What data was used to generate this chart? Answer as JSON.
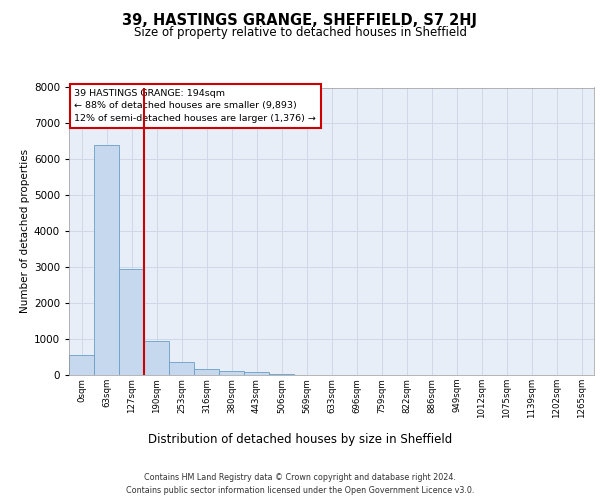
{
  "title": "39, HASTINGS GRANGE, SHEFFIELD, S7 2HJ",
  "subtitle": "Size of property relative to detached houses in Sheffield",
  "xlabel": "Distribution of detached houses by size in Sheffield",
  "ylabel": "Number of detached properties",
  "bar_labels": [
    "0sqm",
    "63sqm",
    "127sqm",
    "190sqm",
    "253sqm",
    "316sqm",
    "380sqm",
    "443sqm",
    "506sqm",
    "569sqm",
    "633sqm",
    "696sqm",
    "759sqm",
    "822sqm",
    "886sqm",
    "949sqm",
    "1012sqm",
    "1075sqm",
    "1139sqm",
    "1202sqm",
    "1265sqm"
  ],
  "bar_values": [
    550,
    6400,
    2950,
    950,
    370,
    170,
    100,
    80,
    30,
    10,
    5,
    3,
    2,
    1,
    1,
    0,
    0,
    0,
    0,
    0,
    0
  ],
  "bar_color": "#c5d8ed",
  "bar_edge_color": "#6a9fc8",
  "annotation_text_line1": "39 HASTINGS GRANGE: 194sqm",
  "annotation_text_line2": "← 88% of detached houses are smaller (9,893)",
  "annotation_text_line3": "12% of semi-detached houses are larger (1,376) →",
  "annotation_box_facecolor": "#ffffff",
  "annotation_box_edgecolor": "#cc0000",
  "vline_color": "#cc0000",
  "vline_x": 3.0,
  "ylim": [
    0,
    8000
  ],
  "yticks": [
    0,
    1000,
    2000,
    3000,
    4000,
    5000,
    6000,
    7000,
    8000
  ],
  "grid_color": "#d0d8e8",
  "background_color": "#e8eef8",
  "footer_line1": "Contains HM Land Registry data © Crown copyright and database right 2024.",
  "footer_line2": "Contains public sector information licensed under the Open Government Licence v3.0."
}
